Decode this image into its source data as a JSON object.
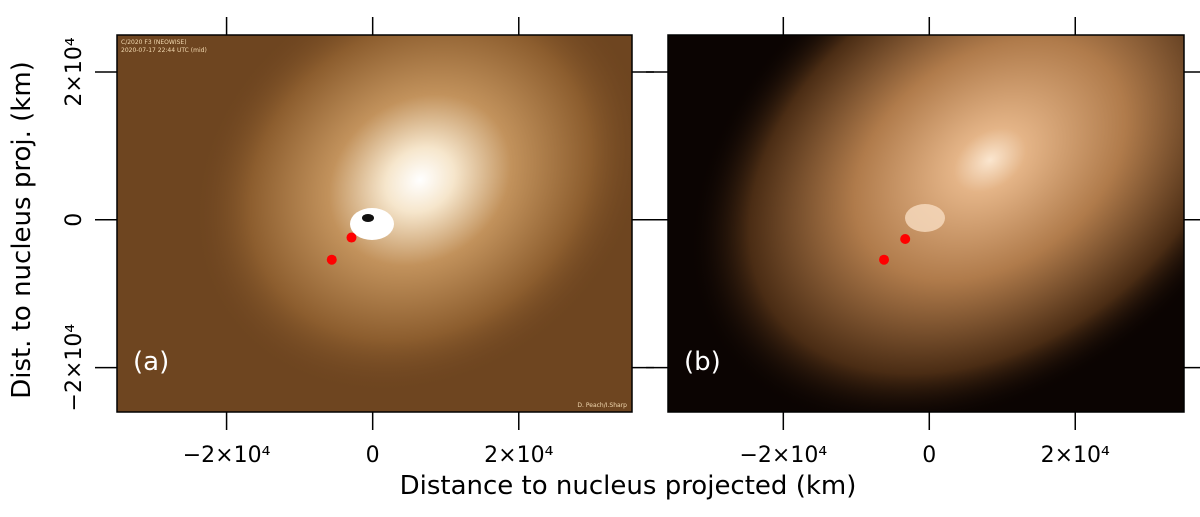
{
  "figure": {
    "xlabel": "Distance to nucleus projected (km)",
    "ylabel": "Dist. to nucleus proj. (km)"
  },
  "chart_data": [
    {
      "type": "scatter",
      "panel_label": "(a)",
      "notes": [
        "C/2020 F3 (NEOWISE)",
        "2020-07-17    22:44 UTC (mid)",
        "D. Peach/I.Sharp"
      ],
      "xlim": [
        -35000,
        35500
      ],
      "ylim": [
        -26000,
        25000
      ],
      "xticks": [
        {
          "value": -20000,
          "label": "−2×10⁴"
        },
        0,
        {
          "value": 20000,
          "label": "2×10⁴"
        }
      ],
      "yticks": [
        {
          "value": -20000,
          "label": "−2×10⁴"
        },
        0,
        {
          "value": 20000,
          "label": "2×10⁴"
        }
      ],
      "series": [
        {
          "color": "#ff0000",
          "x": [
            -2900,
            -5600
          ],
          "y": [
            -2400,
            -5400
          ]
        }
      ]
    },
    {
      "type": "scatter",
      "panel_label": "(b)",
      "xlim": [
        -35800,
        34900
      ],
      "ylim": [
        -26000,
        25000
      ],
      "xticks": [
        {
          "value": -20000,
          "label": "−2×10⁴"
        },
        0,
        {
          "value": 20000,
          "label": "2×10⁴"
        }
      ],
      "series": [
        {
          "color": "#ff0000",
          "x": [
            -3300,
            -6200
          ],
          "y": [
            -2600,
            -5400
          ]
        }
      ]
    }
  ]
}
